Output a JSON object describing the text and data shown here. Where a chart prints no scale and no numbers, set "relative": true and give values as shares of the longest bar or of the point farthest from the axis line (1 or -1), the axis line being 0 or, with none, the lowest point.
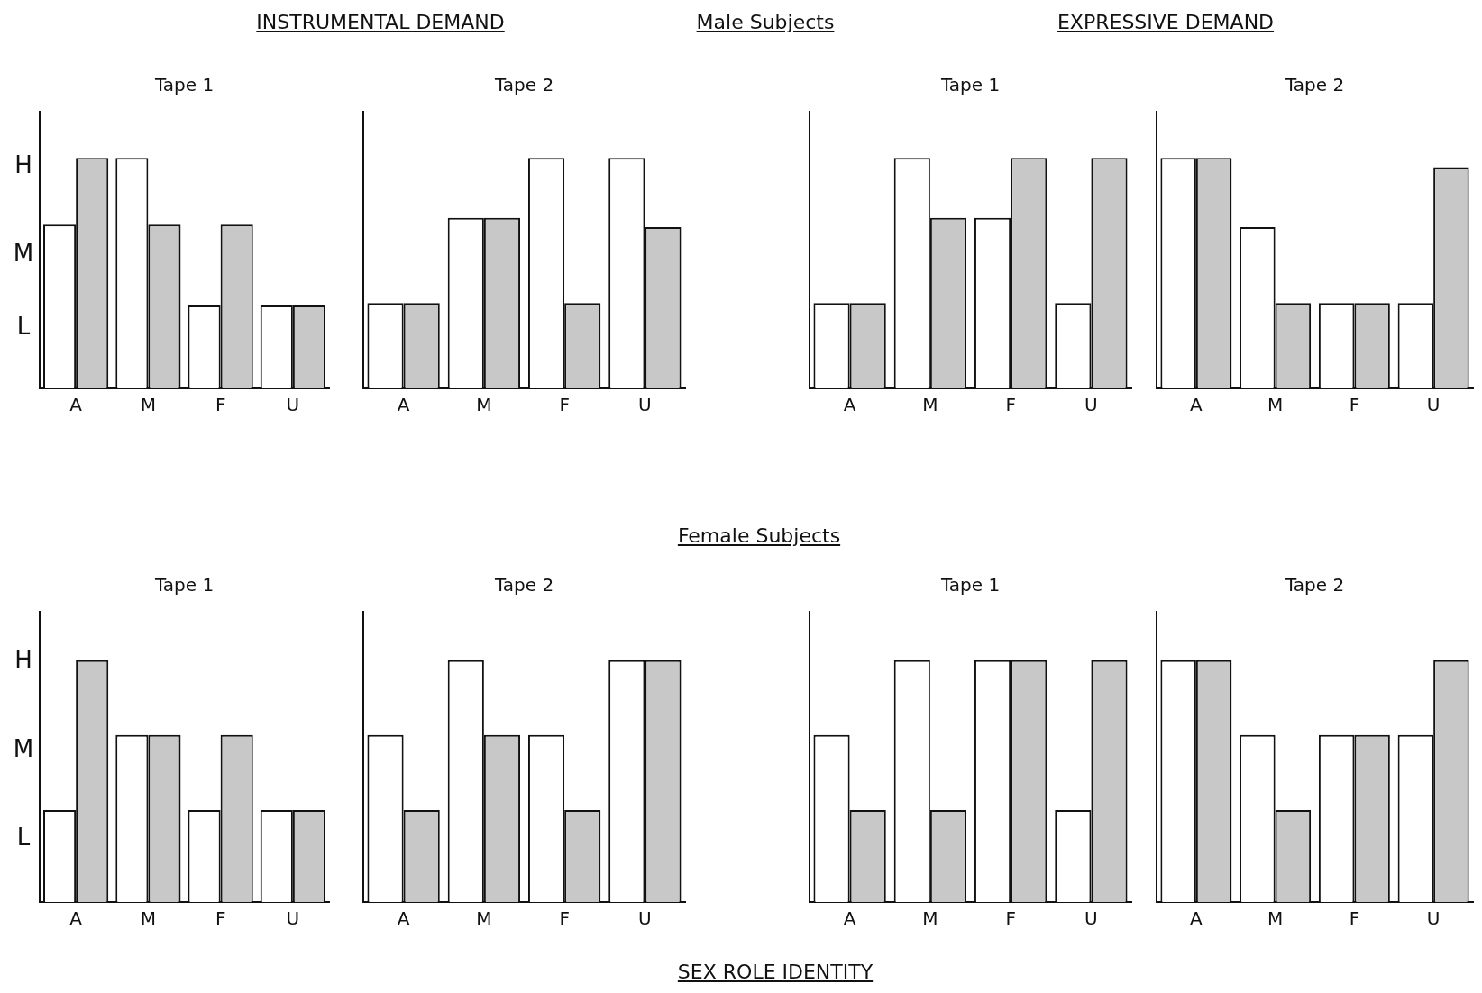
{
  "chart_data": [
    {
      "type": "bar",
      "title": "Tape 1",
      "annotations": [
        "INSTRUMENTAL DEMAND",
        "Male Subjects",
        "H",
        "M",
        "L"
      ],
      "categories": [
        "A",
        "M",
        "F",
        "U"
      ],
      "relative": true,
      "series": [
        {
          "color": "#ffffff",
          "values": [
            0.71,
            1,
            0.36,
            0.36
          ]
        },
        {
          "color": "#c8c8c8",
          "values": [
            1,
            0.71,
            0.71,
            0.36
          ]
        }
      ]
    },
    {
      "type": "bar",
      "title": "Tape 2",
      "categories": [
        "A",
        "M",
        "F",
        "U"
      ],
      "relative": true,
      "series": [
        {
          "color": "#ffffff",
          "values": [
            0.37,
            0.74,
            1,
            1
          ]
        },
        {
          "color": "#c8c8c8",
          "values": [
            0.37,
            0.74,
            0.37,
            0.7
          ]
        }
      ]
    },
    {
      "type": "bar",
      "title": "Tape 1",
      "annotations": [
        "EXPRESSIVE DEMAND"
      ],
      "categories": [
        "A",
        "M",
        "F",
        "U"
      ],
      "relative": true,
      "series": [
        {
          "color": "#ffffff",
          "values": [
            0.37,
            1,
            0.74,
            0.37
          ]
        },
        {
          "color": "#c8c8c8",
          "values": [
            0.37,
            0.74,
            1,
            1
          ]
        }
      ]
    },
    {
      "type": "bar",
      "title": "Tape 2",
      "categories": [
        "A",
        "M",
        "F",
        "U"
      ],
      "relative": true,
      "series": [
        {
          "color": "#ffffff",
          "values": [
            1,
            0.7,
            0.37,
            0.37
          ]
        },
        {
          "color": "#c8c8c8",
          "values": [
            1,
            0.37,
            0.37,
            0.96
          ]
        }
      ]
    },
    {
      "type": "bar",
      "title": "Tape 1",
      "annotations": [
        "Female Subjects",
        "SEX ROLE IDENTITY",
        "H",
        "M",
        "L"
      ],
      "categories": [
        "A",
        "M",
        "F",
        "U"
      ],
      "relative": true,
      "series": [
        {
          "color": "#ffffff",
          "values": [
            0.38,
            0.69,
            0.38,
            0.38
          ]
        },
        {
          "color": "#c8c8c8",
          "values": [
            1,
            0.69,
            0.69,
            0.38
          ]
        }
      ]
    },
    {
      "type": "bar",
      "title": "Tape 2",
      "categories": [
        "A",
        "M",
        "F",
        "U"
      ],
      "relative": true,
      "series": [
        {
          "color": "#ffffff",
          "values": [
            0.69,
            1,
            0.69,
            1
          ]
        },
        {
          "color": "#c8c8c8",
          "values": [
            0.38,
            0.69,
            0.38,
            1
          ]
        }
      ]
    },
    {
      "type": "bar",
      "title": "Tape 1",
      "categories": [
        "A",
        "M",
        "F",
        "U"
      ],
      "relative": true,
      "series": [
        {
          "color": "#ffffff",
          "values": [
            0.69,
            1,
            1,
            0.38
          ]
        },
        {
          "color": "#c8c8c8",
          "values": [
            0.38,
            0.38,
            1,
            1
          ]
        }
      ]
    },
    {
      "type": "bar",
      "title": "Tape 2",
      "categories": [
        "A",
        "M",
        "F",
        "U"
      ],
      "relative": true,
      "series": [
        {
          "color": "#ffffff",
          "values": [
            1,
            0.69,
            0.69,
            0.69
          ]
        },
        {
          "color": "#c8c8c8",
          "values": [
            1,
            0.38,
            0.69,
            1
          ]
        }
      ]
    }
  ]
}
